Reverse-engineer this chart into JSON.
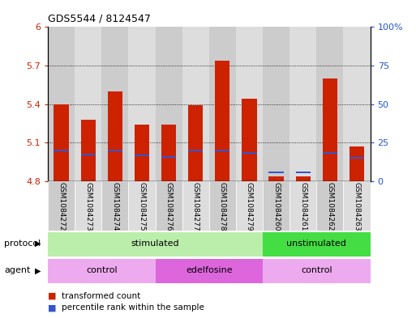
{
  "title": "GDS5544 / 8124547",
  "samples": [
    "GSM1084272",
    "GSM1084273",
    "GSM1084274",
    "GSM1084275",
    "GSM1084276",
    "GSM1084277",
    "GSM1084278",
    "GSM1084279",
    "GSM1084260",
    "GSM1084261",
    "GSM1084262",
    "GSM1084263"
  ],
  "bar_tops": [
    5.4,
    5.28,
    5.5,
    5.24,
    5.24,
    5.39,
    5.74,
    5.44,
    4.84,
    4.84,
    5.6,
    5.07
  ],
  "bar_base": 4.8,
  "blue_positions": [
    5.04,
    5.01,
    5.04,
    5.0,
    4.99,
    5.04,
    5.04,
    5.02,
    4.87,
    4.87,
    5.02,
    4.98
  ],
  "ylim_left": [
    4.8,
    6.0
  ],
  "ylim_right": [
    0,
    100
  ],
  "yticks_left": [
    4.8,
    5.1,
    5.4,
    5.7,
    6.0
  ],
  "ytick_labels_left": [
    "4.8",
    "5.1",
    "5.4",
    "5.7",
    "6"
  ],
  "yticks_right": [
    0,
    25,
    50,
    75,
    100
  ],
  "ytick_labels_right": [
    "0",
    "25",
    "50",
    "75",
    "100%"
  ],
  "bar_color": "#cc2200",
  "blue_color": "#3355cc",
  "plot_bg": "#ffffff",
  "col_bg_odd": "#cccccc",
  "col_bg_even": "#dddddd",
  "protocol_groups": [
    {
      "label": "stimulated",
      "start": 0,
      "end": 7,
      "color": "#bbeeaa"
    },
    {
      "label": "unstimulated",
      "start": 8,
      "end": 11,
      "color": "#44dd44"
    }
  ],
  "agent_groups": [
    {
      "label": "control",
      "start": 0,
      "end": 3,
      "color": "#eeaaee"
    },
    {
      "label": "edelfosine",
      "start": 4,
      "end": 7,
      "color": "#dd66dd"
    },
    {
      "label": "control",
      "start": 8,
      "end": 11,
      "color": "#eeaaee"
    }
  ],
  "bar_width": 0.55,
  "tick_label_color_left": "#cc2200",
  "tick_label_color_right": "#2255cc",
  "legend_items": [
    "transformed count",
    "percentile rank within the sample"
  ]
}
